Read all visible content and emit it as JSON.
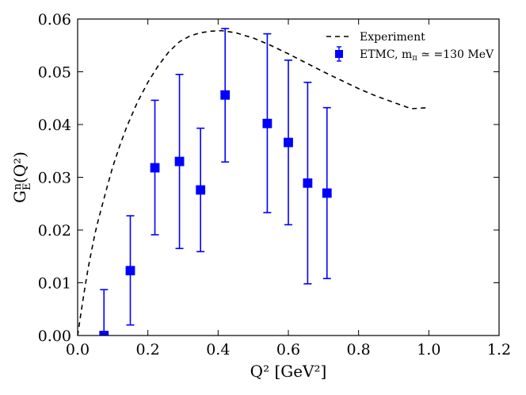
{
  "chart_data": {
    "type": "scatter",
    "xlabel": "Q² [GeV²]",
    "ylabel": "G_E^n(Q²)",
    "xlim": [
      0.0,
      1.2
    ],
    "ylim": [
      0.0,
      0.06
    ],
    "xticks": [
      "0.0",
      "0.2",
      "0.4",
      "0.6",
      "0.8",
      "1.0",
      "1.2"
    ],
    "yticks": [
      "0.00",
      "0.01",
      "0.02",
      "0.03",
      "0.04",
      "0.05",
      "0.06"
    ],
    "series": [
      {
        "name": "Experiment",
        "style": "dashed-line",
        "color": "#000000",
        "points": [
          [
            0.0,
            0.0
          ],
          [
            0.01,
            0.0045
          ],
          [
            0.02,
            0.0088
          ],
          [
            0.03,
            0.0128
          ],
          [
            0.04,
            0.0162
          ],
          [
            0.05,
            0.0195
          ],
          [
            0.06,
            0.0222
          ],
          [
            0.08,
            0.0272
          ],
          [
            0.1,
            0.032
          ],
          [
            0.12,
            0.036
          ],
          [
            0.14,
            0.0396
          ],
          [
            0.17,
            0.0442
          ],
          [
            0.2,
            0.048
          ],
          [
            0.23,
            0.0512
          ],
          [
            0.26,
            0.0538
          ],
          [
            0.29,
            0.0557
          ],
          [
            0.32,
            0.0568
          ],
          [
            0.35,
            0.0574
          ],
          [
            0.38,
            0.0577
          ],
          [
            0.41,
            0.0578
          ],
          [
            0.45,
            0.0574
          ],
          [
            0.5,
            0.0564
          ],
          [
            0.55,
            0.055
          ],
          [
            0.6,
            0.0534
          ],
          [
            0.65,
            0.0517
          ],
          [
            0.7,
            0.05
          ],
          [
            0.75,
            0.0484
          ],
          [
            0.8,
            0.0468
          ],
          [
            0.85,
            0.0454
          ],
          [
            0.9,
            0.0442
          ],
          [
            0.95,
            0.043
          ],
          [
            1.0,
            0.0432
          ]
        ]
      },
      {
        "name": "ETMC, m_π ≃ =130 MeV",
        "legend_main": "ETMC, m",
        "legend_sub": "π",
        "legend_rest": " ≃ =130 MeV",
        "style": "errorbar-square",
        "color": "#0000ff",
        "points": [
          {
            "x": 0.075,
            "y": 0.0,
            "err_low": 0.0,
            "err_high": 0.0087
          },
          {
            "x": 0.15,
            "y": 0.0123,
            "err_low": 0.0103,
            "err_high": 0.0104
          },
          {
            "x": 0.22,
            "y": 0.0318,
            "err_low": 0.0127,
            "err_high": 0.0128
          },
          {
            "x": 0.29,
            "y": 0.033,
            "err_low": 0.0165,
            "err_high": 0.0165
          },
          {
            "x": 0.35,
            "y": 0.0276,
            "err_low": 0.0117,
            "err_high": 0.0117
          },
          {
            "x": 0.42,
            "y": 0.0456,
            "err_low": 0.0127,
            "err_high": 0.0126
          },
          {
            "x": 0.54,
            "y": 0.0402,
            "err_low": 0.0169,
            "err_high": 0.017
          },
          {
            "x": 0.6,
            "y": 0.0366,
            "err_low": 0.0156,
            "err_high": 0.0156
          },
          {
            "x": 0.655,
            "y": 0.0289,
            "err_low": 0.0191,
            "err_high": 0.0191
          },
          {
            "x": 0.71,
            "y": 0.027,
            "err_low": 0.0162,
            "err_high": 0.0162
          }
        ]
      }
    ],
    "legend": {
      "position": "top-right"
    }
  }
}
